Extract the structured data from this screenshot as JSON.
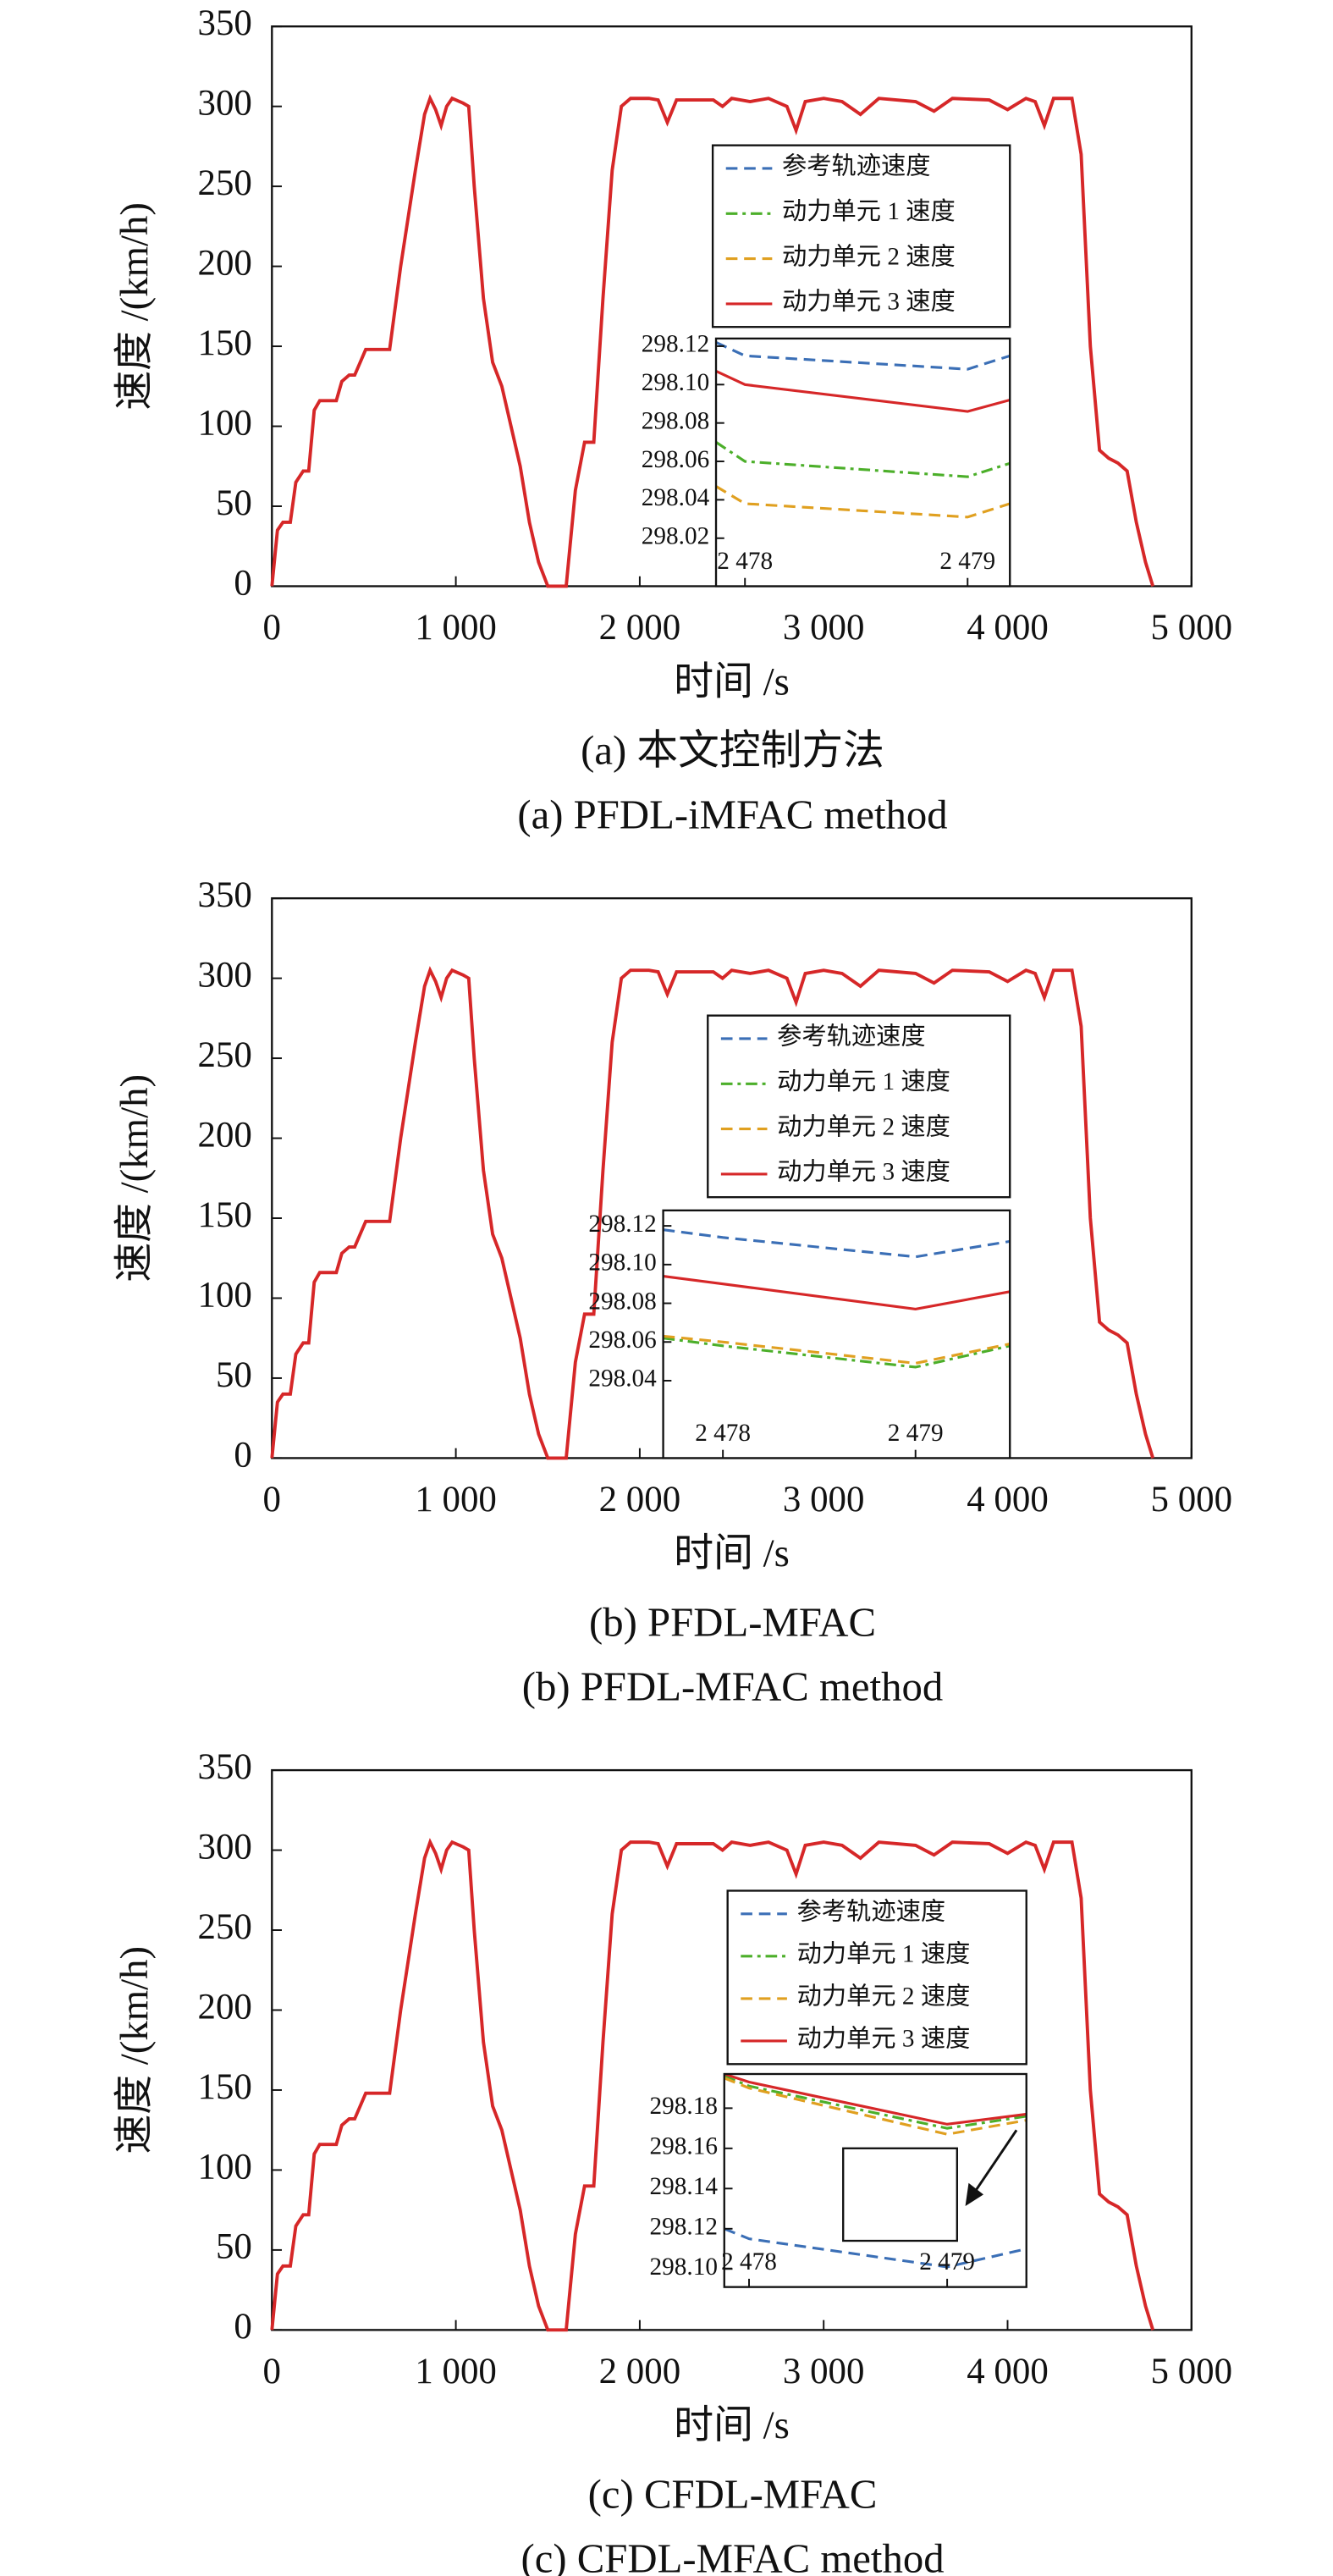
{
  "chart_data": [
    {
      "type": "line",
      "title": "(a) 本文控制方法",
      "subtitle": "(a) PFDL-iMFAC method",
      "xlabel": "时间 /s",
      "ylabel": "速度 /(km/h)",
      "color": "#d62728",
      "x": [
        0,
        30,
        60,
        100,
        130,
        170,
        200,
        230,
        260,
        350,
        380,
        420,
        450,
        480,
        510,
        640,
        700,
        780,
        830,
        860,
        890,
        920,
        950,
        980,
        1040,
        1070,
        1100,
        1150,
        1200,
        1250,
        1300,
        1350,
        1400,
        1450,
        1500,
        1600,
        1650,
        1700,
        1750,
        1800,
        1850,
        1900,
        1950,
        2050,
        2100,
        2150,
        2200,
        2400,
        2450,
        2500,
        2600,
        2700,
        2800,
        2850,
        2900,
        3000,
        3100,
        3200,
        3300,
        3500,
        3600,
        3700,
        3900,
        4000,
        4100,
        4150,
        4200,
        4250,
        4350,
        4400,
        4450,
        4500,
        4550,
        4600,
        4650,
        4700,
        4750,
        4790
      ],
      "values": [
        0,
        35,
        40,
        40,
        65,
        72,
        72,
        110,
        116,
        116,
        128,
        132,
        132,
        140,
        148,
        148,
        200,
        260,
        295,
        305,
        298,
        288,
        300,
        305,
        302,
        300,
        250,
        180,
        140,
        125,
        100,
        75,
        40,
        15,
        0,
        0,
        60,
        90,
        90,
        180,
        260,
        300,
        305,
        305,
        304,
        290,
        304,
        304,
        300,
        305,
        303,
        305,
        300,
        285,
        303,
        305,
        303,
        295,
        305,
        303,
        297,
        305,
        304,
        298,
        305,
        303,
        288,
        305,
        305,
        270,
        150,
        85,
        80,
        77,
        72,
        40,
        15,
        0
      ],
      "xlim": [
        0,
        5000
      ],
      "ylim": [
        0,
        350
      ],
      "xticks": [
        0,
        {
          "value": 1000,
          "label": "1 000"
        },
        {
          "value": 2000,
          "label": "2 000"
        },
        {
          "value": 3000,
          "label": "3 000"
        },
        {
          "value": 4000,
          "label": "4 000"
        },
        {
          "value": 5000,
          "label": "5 000"
        }
      ],
      "yticks": [
        0,
        50,
        100,
        150,
        200,
        250,
        300,
        350
      ],
      "inset": {
        "x": [
          2477.87,
          2478,
          2479,
          2479.19
        ],
        "xlim": [
          2477.87,
          2479.19
        ],
        "ylim": [
          297.995,
          298.124
        ],
        "xticks": [
          {
            "value": 2478,
            "label": "2 478"
          },
          {
            "value": 2479,
            "label": "2 479"
          }
        ],
        "yticks": [
          298.12,
          {
            "value": 298.1,
            "label": "298.10"
          },
          298.08,
          298.06,
          298.04,
          298.02
        ],
        "series": [
          {
            "name": "参考轨迹速度",
            "color": "#3b6fb6",
            "dash": "dashed",
            "values": [
              298.122,
              298.115,
              298.108,
              298.115
            ]
          },
          {
            "name": "动力单元 1 速度",
            "color": "#4caf2a",
            "dash": "dashdot",
            "values": [
              298.07,
              298.06,
              298.052,
              298.059
            ]
          },
          {
            "name": "动力单元 2 速度",
            "color": "#e0a020",
            "dash": "dashed",
            "values": [
              298.047,
              298.038,
              298.031,
              298.038
            ]
          },
          {
            "name": "动力单元 3 速度",
            "color": "#d62728",
            "dash": "solid",
            "values": [
              298.107,
              298.1,
              298.086,
              298.092
            ]
          }
        ]
      }
    },
    {
      "type": "line",
      "title": "(b) PFDL-MFAC",
      "subtitle": "(b) PFDL-MFAC method",
      "xlabel": "时间 /s",
      "ylabel": "速度 /(km/h)",
      "color": "#d62728",
      "x": [
        0,
        30,
        60,
        100,
        130,
        170,
        200,
        230,
        260,
        350,
        380,
        420,
        450,
        480,
        510,
        640,
        700,
        780,
        830,
        860,
        890,
        920,
        950,
        980,
        1040,
        1070,
        1100,
        1150,
        1200,
        1250,
        1300,
        1350,
        1400,
        1450,
        1500,
        1600,
        1650,
        1700,
        1750,
        1800,
        1850,
        1900,
        1950,
        2050,
        2100,
        2150,
        2200,
        2400,
        2450,
        2500,
        2600,
        2700,
        2800,
        2850,
        2900,
        3000,
        3100,
        3200,
        3300,
        3500,
        3600,
        3700,
        3900,
        4000,
        4100,
        4150,
        4200,
        4250,
        4350,
        4400,
        4450,
        4500,
        4550,
        4600,
        4650,
        4700,
        4750,
        4790
      ],
      "values": [
        0,
        35,
        40,
        40,
        65,
        72,
        72,
        110,
        116,
        116,
        128,
        132,
        132,
        140,
        148,
        148,
        200,
        260,
        295,
        305,
        298,
        288,
        300,
        305,
        302,
        300,
        250,
        180,
        140,
        125,
        100,
        75,
        40,
        15,
        0,
        0,
        60,
        90,
        90,
        180,
        260,
        300,
        305,
        305,
        304,
        290,
        304,
        304,
        300,
        305,
        303,
        305,
        300,
        285,
        303,
        305,
        303,
        295,
        305,
        303,
        297,
        305,
        304,
        298,
        305,
        303,
        288,
        305,
        305,
        270,
        150,
        85,
        80,
        77,
        72,
        40,
        15,
        0
      ],
      "xlim": [
        0,
        5000
      ],
      "ylim": [
        0,
        350
      ],
      "xticks": [
        0,
        {
          "value": 1000,
          "label": "1 000"
        },
        {
          "value": 2000,
          "label": "2 000"
        },
        {
          "value": 3000,
          "label": "3 000"
        },
        {
          "value": 4000,
          "label": "4 000"
        },
        {
          "value": 5000,
          "label": "5 000"
        }
      ],
      "yticks": [
        0,
        50,
        100,
        150,
        200,
        250,
        300,
        350
      ],
      "inset": {
        "x": [
          2477.69,
          2478,
          2479,
          2479.49
        ],
        "xlim": [
          2477.69,
          2479.49
        ],
        "ylim": [
          298.0,
          298.128
        ],
        "xticks": [
          {
            "value": 2478,
            "label": "2 478"
          },
          {
            "value": 2479,
            "label": "2 479"
          }
        ],
        "yticks": [
          298.12,
          {
            "value": 298.1,
            "label": "298.10"
          },
          298.08,
          298.06,
          298.04
        ],
        "series": [
          {
            "name": "参考轨迹速度",
            "color": "#3b6fb6",
            "dash": "dashed",
            "values": [
              298.118,
              298.114,
              298.104,
              298.112
            ]
          },
          {
            "name": "动力单元 1 速度",
            "color": "#4caf2a",
            "dash": "dashdot",
            "values": [
              298.062,
              298.058,
              298.047,
              298.058
            ]
          },
          {
            "name": "动力单元 2 速度",
            "color": "#e0a020",
            "dash": "dashed",
            "values": [
              298.063,
              298.06,
              298.049,
              298.059
            ]
          },
          {
            "name": "动力单元 3 速度",
            "color": "#d62728",
            "dash": "solid",
            "values": [
              298.094,
              298.09,
              298.077,
              298.086
            ]
          }
        ]
      }
    },
    {
      "type": "line",
      "title": "(c) CFDL-MFAC",
      "subtitle": "(c) CFDL-MFAC method",
      "xlabel": "时间 /s",
      "ylabel": "速度 /(km/h)",
      "color": "#d62728",
      "x": [
        0,
        30,
        60,
        100,
        130,
        170,
        200,
        230,
        260,
        350,
        380,
        420,
        450,
        480,
        510,
        640,
        700,
        780,
        830,
        860,
        890,
        920,
        950,
        980,
        1040,
        1070,
        1100,
        1150,
        1200,
        1250,
        1300,
        1350,
        1400,
        1450,
        1500,
        1600,
        1650,
        1700,
        1750,
        1800,
        1850,
        1900,
        1950,
        2050,
        2100,
        2150,
        2200,
        2400,
        2450,
        2500,
        2600,
        2700,
        2800,
        2850,
        2900,
        3000,
        3100,
        3200,
        3300,
        3500,
        3600,
        3700,
        3900,
        4000,
        4100,
        4150,
        4200,
        4250,
        4350,
        4400,
        4450,
        4500,
        4550,
        4600,
        4650,
        4700,
        4750,
        4790
      ],
      "values": [
        0,
        35,
        40,
        40,
        65,
        72,
        72,
        110,
        116,
        116,
        128,
        132,
        132,
        140,
        148,
        148,
        200,
        260,
        295,
        305,
        298,
        288,
        300,
        305,
        302,
        300,
        250,
        180,
        140,
        125,
        100,
        75,
        40,
        15,
        0,
        0,
        60,
        90,
        90,
        180,
        260,
        300,
        305,
        305,
        304,
        290,
        304,
        304,
        300,
        305,
        303,
        305,
        300,
        285,
        303,
        305,
        303,
        295,
        305,
        303,
        297,
        305,
        304,
        298,
        305,
        303,
        288,
        305,
        305,
        270,
        150,
        85,
        80,
        77,
        72,
        40,
        15,
        0
      ],
      "xlim": [
        0,
        5000
      ],
      "ylim": [
        0,
        350
      ],
      "xticks": [
        0,
        {
          "value": 1000,
          "label": "1 000"
        },
        {
          "value": 2000,
          "label": "2 000"
        },
        {
          "value": 3000,
          "label": "3 000"
        },
        {
          "value": 4000,
          "label": "4 000"
        },
        {
          "value": 5000,
          "label": "5 000"
        }
      ],
      "yticks": [
        0,
        50,
        100,
        150,
        200,
        250,
        300,
        350
      ],
      "inset": {
        "x": [
          2477.875,
          2478,
          2479,
          2479.4
        ],
        "xlim": [
          2477.875,
          2479.4
        ],
        "ylim": [
          298.091,
          298.197
        ],
        "xticks": [
          {
            "value": 2478,
            "label": "2 478"
          },
          {
            "value": 2479,
            "label": "2 479"
          }
        ],
        "yticks": [
          298.18,
          298.16,
          298.14,
          298.12,
          {
            "value": 298.1,
            "label": "298.10"
          }
        ],
        "series": [
          {
            "name": "参考轨迹速度",
            "color": "#3b6fb6",
            "dash": "dashed",
            "values": [
              298.12,
              298.115,
              298.101,
              298.11
            ]
          },
          {
            "name": "动力单元 1 速度",
            "color": "#4caf2a",
            "dash": "dashdot",
            "values": [
              298.196,
              298.191,
              298.17,
              298.176
            ]
          },
          {
            "name": "动力单元 2 速度",
            "color": "#e0a020",
            "dash": "dashed",
            "values": [
              298.195,
              298.19,
              298.167,
              298.174
            ]
          },
          {
            "name": "动力单元 3 速度",
            "color": "#d62728",
            "dash": "solid",
            "values": [
              298.197,
              298.193,
              298.172,
              298.177
            ]
          }
        ]
      }
    }
  ]
}
